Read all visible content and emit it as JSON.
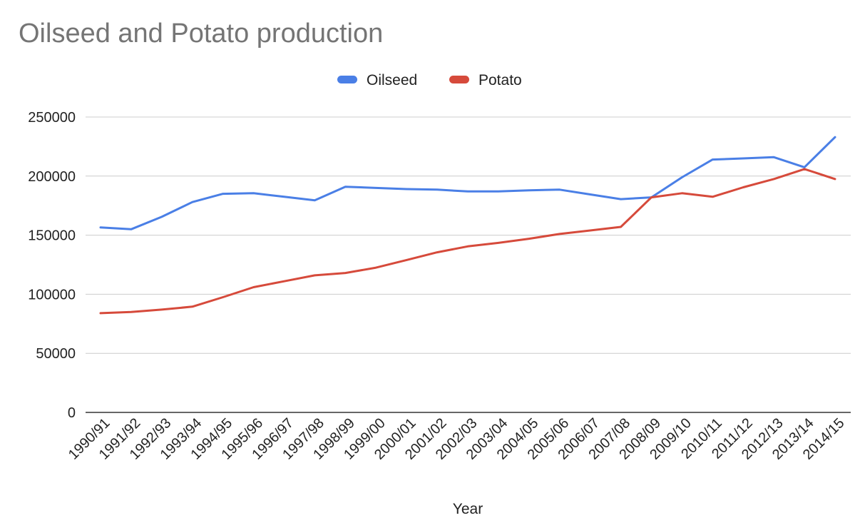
{
  "chart_data": {
    "type": "line",
    "title": "Oilseed and Potato production",
    "xlabel": "Year",
    "ylabel": "",
    "ylim": [
      0,
      250000
    ],
    "yticks": [
      "0",
      "50000",
      "100000",
      "150000",
      "200000",
      "250000"
    ],
    "grid": true,
    "legend_position": "top-center",
    "categories": [
      "1990/91",
      "1991/92",
      "1992/93",
      "1993/94",
      "1994/95",
      "1995/96",
      "1996/97",
      "1997/98",
      "1998/99",
      "1999/00",
      "2000/01",
      "2001/02",
      "2002/03",
      "2003/04",
      "2004/05",
      "2005/06",
      "2006/07",
      "2007/08",
      "2008/09",
      "2009/10",
      "2010/11",
      "2011/12",
      "2012/13",
      "2013/14",
      "2014/15"
    ],
    "series": [
      {
        "name": "Oilseed",
        "color": "#4a7fe6",
        "values": [
          156500,
          155000,
          165500,
          178000,
          185000,
          185500,
          182500,
          179500,
          191000,
          190000,
          189000,
          188500,
          187000,
          187000,
          188000,
          188500,
          184500,
          180500,
          182000,
          199000,
          214000,
          215000,
          216000,
          207500,
          233000
        ]
      },
      {
        "name": "Potato",
        "color": "#d64a3b",
        "values": [
          84000,
          85000,
          87000,
          89500,
          97500,
          106000,
          111000,
          116000,
          118000,
          122500,
          129000,
          135500,
          140500,
          143500,
          147000,
          151000,
          154000,
          157000,
          182000,
          185500,
          182500,
          190500,
          197500,
          206000,
          197500
        ]
      }
    ]
  }
}
